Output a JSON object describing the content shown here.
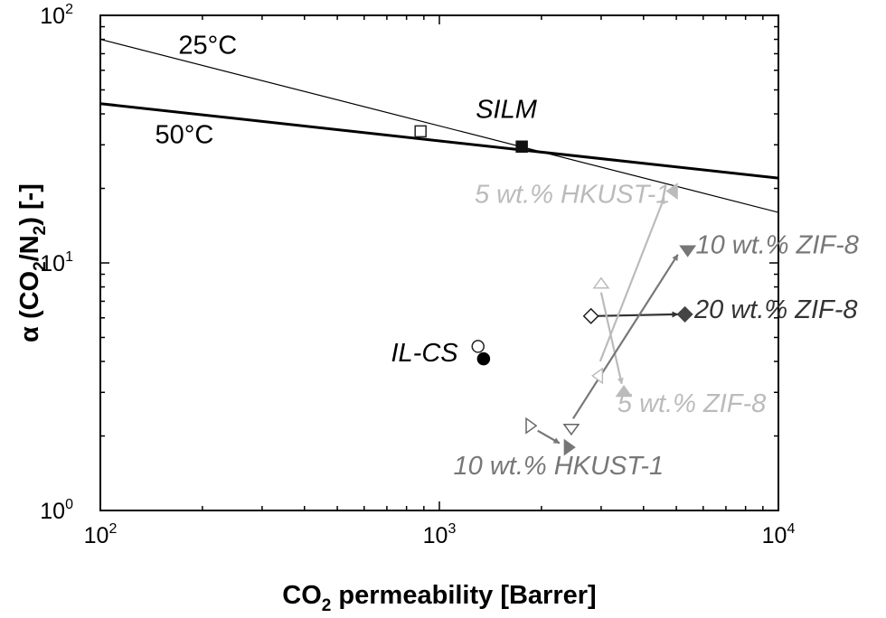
{
  "chart_data": {
    "type": "scatter",
    "x_scale": "log",
    "y_scale": "log",
    "xlim": [
      100,
      10000
    ],
    "ylim": [
      1,
      100
    ],
    "xlabel": {
      "pre": "CO",
      "sub": "2",
      "post": " permeability [Barrer]"
    },
    "ylabel": {
      "pre": "α (CO",
      "sub1": "2",
      "mid": "/N",
      "sub2": "2",
      "post": ") [-]"
    },
    "x_ticks": [
      {
        "value": 100,
        "base": "10",
        "exp": "2"
      },
      {
        "value": 1000,
        "base": "10",
        "exp": "3"
      },
      {
        "value": 10000,
        "base": "10",
        "exp": "4"
      }
    ],
    "y_ticks": [
      {
        "value": 1,
        "base": "10",
        "exp": "0"
      },
      {
        "value": 10,
        "base": "10",
        "exp": "1"
      },
      {
        "value": 100,
        "base": "10",
        "exp": "2"
      }
    ],
    "lines": [
      {
        "name": "25°C",
        "x": [
          100,
          10000
        ],
        "y": [
          80,
          16
        ],
        "stroke": "#000000",
        "width": 1.2
      },
      {
        "name": "50°C",
        "x": [
          100,
          10000
        ],
        "y": [
          44,
          22
        ],
        "stroke": "#000000",
        "width": 3
      }
    ],
    "points": [
      {
        "x": 880,
        "y": 34,
        "shape": "square",
        "filled": false,
        "color": "#222222"
      },
      {
        "x": 1750,
        "y": 29.5,
        "shape": "square",
        "filled": true,
        "color": "#111111"
      },
      {
        "x": 1300,
        "y": 4.6,
        "shape": "circle",
        "filled": false,
        "color": "#222222"
      },
      {
        "x": 1350,
        "y": 4.1,
        "shape": "circle",
        "filled": true,
        "color": "#000000"
      },
      {
        "x": 2800,
        "y": 6.1,
        "shape": "diamond",
        "filled": false,
        "color": "#222222"
      },
      {
        "x": 5300,
        "y": 6.2,
        "shape": "diamond",
        "filled": true,
        "color": "#444444"
      },
      {
        "x": 3000,
        "y": 8.2,
        "shape": "tri-up",
        "filled": false,
        "color": "#bbbbbb"
      },
      {
        "x": 3500,
        "y": 3.0,
        "shape": "tri-up",
        "filled": true,
        "color": "#bbbbbb"
      },
      {
        "x": 2950,
        "y": 3.5,
        "shape": "tri-left",
        "filled": false,
        "color": "#bbbbbb"
      },
      {
        "x": 4900,
        "y": 19.5,
        "shape": "tri-left",
        "filled": true,
        "color": "#bbbbbb"
      },
      {
        "x": 2450,
        "y": 2.15,
        "shape": "tri-down",
        "filled": false,
        "color": "#666666"
      },
      {
        "x": 5400,
        "y": 11.3,
        "shape": "tri-down",
        "filled": true,
        "color": "#777777"
      },
      {
        "x": 1850,
        "y": 2.2,
        "shape": "tri-right",
        "filled": false,
        "color": "#666666"
      },
      {
        "x": 2400,
        "y": 1.8,
        "shape": "tri-right",
        "filled": true,
        "color": "#777777"
      }
    ],
    "arrows": [
      {
        "from": [
          2850,
          6.1
        ],
        "to": [
          5050,
          6.2
        ],
        "color": "#333333"
      },
      {
        "from": [
          3000,
          7.6
        ],
        "to": [
          3450,
          3.25
        ],
        "color": "#bbbbbb"
      },
      {
        "from": [
          2980,
          4.0
        ],
        "to": [
          4600,
          18.3
        ],
        "color": "#bbbbbb"
      },
      {
        "from": [
          2480,
          2.35
        ],
        "to": [
          5050,
          10.8
        ],
        "color": "#777777"
      },
      {
        "from": [
          1950,
          2.1
        ],
        "to": [
          2260,
          1.87
        ],
        "color": "#777777"
      }
    ],
    "annotations": [
      {
        "text": "25°C",
        "x": 170,
        "y": 70,
        "italic": false,
        "color": "#000000",
        "anchor": "start"
      },
      {
        "text": "50°C",
        "x": 145,
        "y": 30.5,
        "italic": false,
        "color": "#000000",
        "anchor": "start"
      },
      {
        "text": "SILM",
        "x": 1280,
        "y": 38.5,
        "italic": true,
        "color": "#000000",
        "anchor": "start"
      },
      {
        "text": "IL-CS",
        "x": 720,
        "y": 4.0,
        "italic": true,
        "color": "#000000",
        "anchor": "start"
      },
      {
        "text": "5 wt.% HKUST-1",
        "x": 4800,
        "y": 17.5,
        "italic": true,
        "color": "#bbbbbb",
        "anchor": "end"
      },
      {
        "text": "10 wt.% ZIF-8",
        "x": 5700,
        "y": 10.9,
        "italic": true,
        "color": "#777777",
        "anchor": "start"
      },
      {
        "text": "20 wt.% ZIF-8",
        "x": 5650,
        "y": 6.0,
        "italic": true,
        "color": "#333333",
        "anchor": "start"
      },
      {
        "text": "5 wt.% ZIF-8",
        "x": 3350,
        "y": 2.5,
        "italic": true,
        "color": "#bbbbbb",
        "anchor": "start"
      },
      {
        "text": "10 wt.% HKUST-1",
        "x": 1100,
        "y": 1.4,
        "italic": true,
        "color": "#777777",
        "anchor": "start"
      }
    ]
  }
}
